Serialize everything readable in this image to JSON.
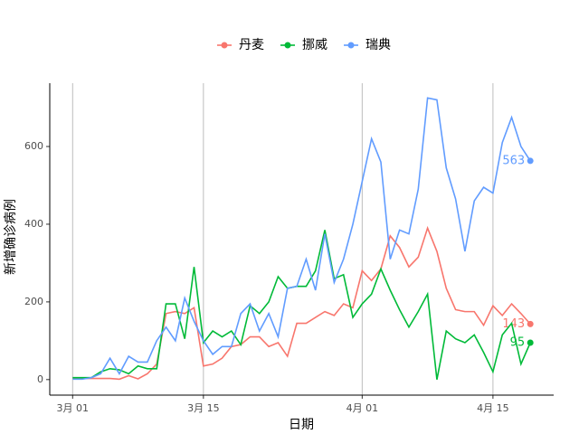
{
  "chart_data": {
    "type": "line",
    "x_label": "日期",
    "y_label": "新增确诊病例",
    "x": [
      0,
      1,
      2,
      3,
      4,
      5,
      6,
      7,
      8,
      9,
      10,
      11,
      12,
      13,
      14,
      15,
      16,
      17,
      18,
      19,
      20,
      21,
      22,
      23,
      24,
      25,
      26,
      27,
      28,
      29,
      30,
      31,
      32,
      33,
      34,
      35,
      36,
      37,
      38,
      39,
      40,
      41,
      42,
      43,
      44,
      45,
      46,
      47,
      48,
      49
    ],
    "xlim": [
      -2.45,
      51.5
    ],
    "xticks": [
      {
        "value": 0,
        "label": "3月 01"
      },
      {
        "value": 14,
        "label": "3月 15"
      },
      {
        "value": 31,
        "label": "4月 01"
      },
      {
        "value": 45,
        "label": "4月 15"
      }
    ],
    "ylim": [
      -40,
      763
    ],
    "yticks": [
      0,
      200,
      400,
      600
    ],
    "grid": true,
    "legend": "top",
    "series": [
      {
        "name": "丹麦",
        "color": "#F8766D",
        "values": [
          3,
          3,
          3,
          3,
          3,
          1,
          10,
          2,
          15,
          40,
          170,
          175,
          170,
          185,
          35,
          40,
          55,
          85,
          90,
          110,
          110,
          85,
          95,
          60,
          145,
          145,
          160,
          175,
          165,
          195,
          185,
          280,
          255,
          285,
          370,
          340,
          290,
          315,
          390,
          330,
          235,
          180,
          175,
          175,
          140,
          190,
          165,
          195,
          170,
          143
        ]
      },
      {
        "name": "挪威",
        "color": "#00BA38",
        "values": [
          5,
          5,
          5,
          20,
          28,
          25,
          15,
          35,
          28,
          28,
          195,
          195,
          105,
          290,
          95,
          125,
          110,
          125,
          90,
          190,
          170,
          200,
          265,
          235,
          240,
          240,
          280,
          385,
          260,
          270,
          160,
          195,
          220,
          285,
          230,
          180,
          135,
          175,
          220,
          0,
          125,
          105,
          95,
          115,
          70,
          20,
          115,
          145,
          40,
          95
        ]
      },
      {
        "name": "瑞典",
        "color": "#619CFF",
        "values": [
          1,
          1,
          5,
          15,
          55,
          15,
          60,
          45,
          45,
          100,
          135,
          100,
          210,
          150,
          100,
          65,
          85,
          85,
          170,
          195,
          125,
          170,
          110,
          235,
          240,
          310,
          230,
          375,
          250,
          310,
          400,
          510,
          620,
          560,
          310,
          385,
          375,
          490,
          725,
          720,
          545,
          465,
          330,
          460,
          495,
          480,
          610,
          675,
          600,
          563
        ]
      }
    ]
  }
}
